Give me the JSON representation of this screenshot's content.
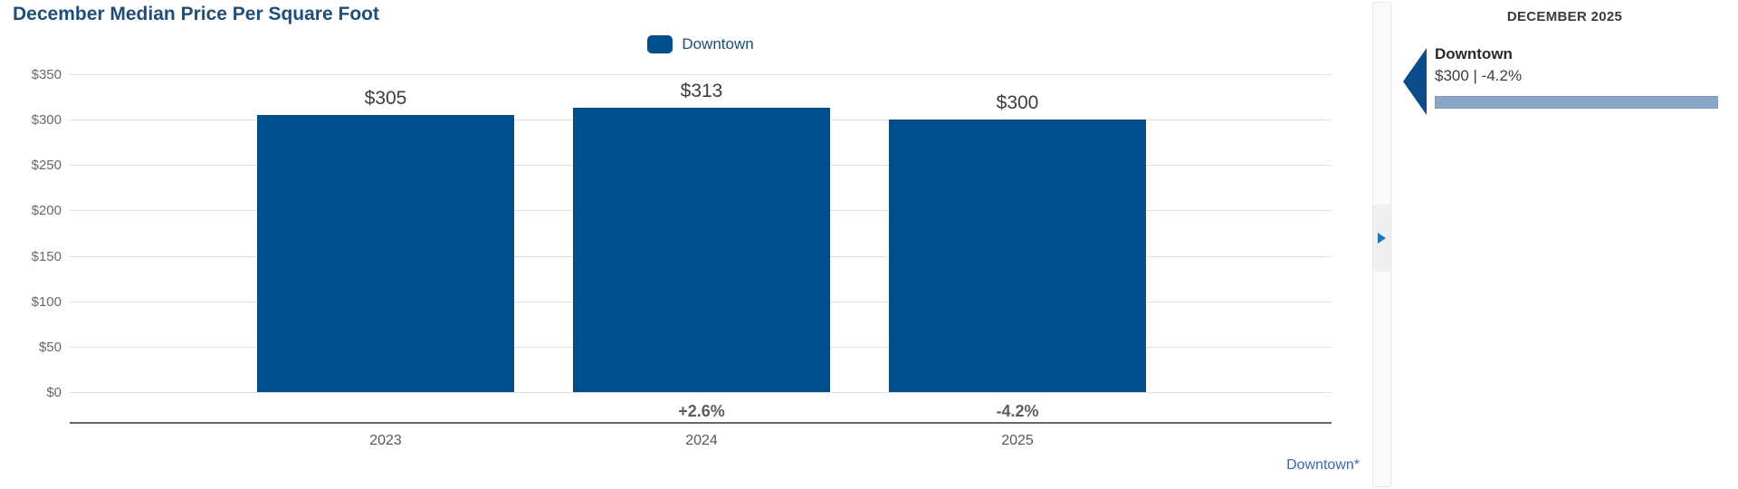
{
  "title": "December Median Price Per Square Foot",
  "legend": {
    "items": [
      {
        "label": "Downtown",
        "color": "#004F8C"
      }
    ]
  },
  "chart_data": {
    "type": "bar",
    "title": "December Median Price Per Square Foot",
    "categories": [
      "2023",
      "2024",
      "2025"
    ],
    "series": [
      {
        "name": "Downtown",
        "color": "#004F8C",
        "values": [
          305,
          313,
          300
        ]
      }
    ],
    "value_labels": [
      "$305",
      "$313",
      "$300"
    ],
    "change_labels": [
      "",
      "+2.6%",
      "-4.2%"
    ],
    "y_ticks": [
      350,
      300,
      250,
      200,
      150,
      100,
      50,
      0
    ],
    "y_tick_labels": [
      "$350",
      "$300",
      "$250",
      "$200",
      "$150",
      "$100",
      "$50",
      "$0"
    ],
    "ylim": [
      0,
      350
    ],
    "grid": true,
    "legend_position": "top",
    "xlabel": "",
    "ylabel": ""
  },
  "footnote_link": "Downtown*",
  "side_panel": {
    "heading": "DECEMBER 2025",
    "entry": {
      "name": "Downtown",
      "stat": "$300 | -4.2%",
      "bar_color": "#8BA7C7",
      "arrow_color": "#0B4D8A"
    }
  }
}
